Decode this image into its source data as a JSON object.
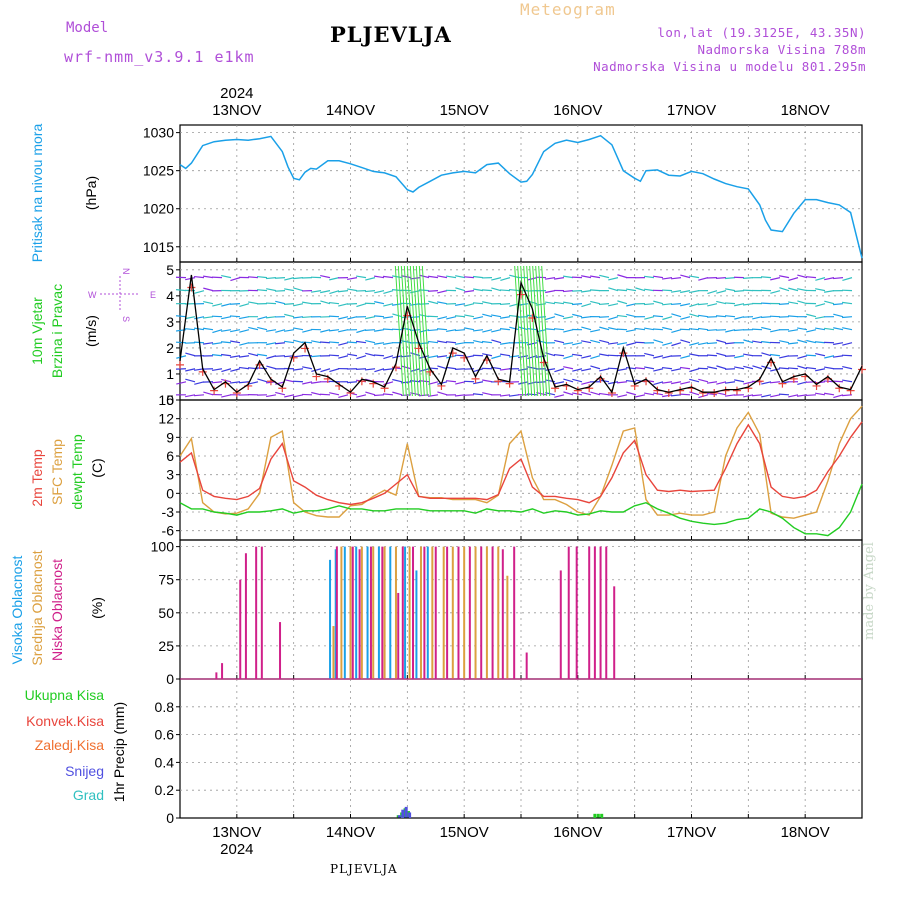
{
  "header": {
    "model_label": "Model",
    "model_name": "wrf-nmm_v3.9.1 e1km",
    "station": "PLJEVLJA",
    "meteogram": "Meteogram",
    "coords": "lon,lat (19.3125E, 43.35N)",
    "altitude": "Nadmorska Visina 788m",
    "model_altitude": "Nadmorska Visina u modelu 801.295m"
  },
  "footer": {
    "station": "PLJEVLJA",
    "credit": "made by Angel"
  },
  "colors": {
    "pressure": "#1aa0e8",
    "temp2m": "#e8453c",
    "sfc": "#dca040",
    "dewpt": "#22cc22",
    "high_cloud": "#1aa0e8",
    "mid_cloud": "#dca040",
    "low_cloud": "#d0208a",
    "total_precip": "#22cc22",
    "conv_precip": "#e8453c",
    "frozen_precip": "#f07030",
    "snow": "#5050e0",
    "hail": "#30c0c0",
    "axis_label": "#000",
    "grid": "#999999"
  },
  "axis": {
    "year": "2024",
    "days": [
      "13NOV",
      "14NOV",
      "15NOV",
      "16NOV",
      "17NOV",
      "18NOV"
    ]
  },
  "panel_labels": {
    "pressure": {
      "lines": [
        "Pritisak na nivou mora"
      ],
      "unit": "(hPa)"
    },
    "wind": {
      "lines": [
        "10m Vjetar",
        "Brzina i Pravac"
      ],
      "unit": "(m/s)",
      "compass": [
        "W",
        "E",
        "N",
        "S"
      ]
    },
    "temp": {
      "lines": [
        "2m Temp",
        "SFC Temp",
        "dewpt Temp"
      ],
      "unit": "(C)"
    },
    "cloud": {
      "lines": [
        "Visoka Oblacnost",
        "Srednja Oblacnost",
        "Niska Oblacnost"
      ],
      "unit": "(%)"
    },
    "precip": {
      "lines": [
        "Ukupna Kisa",
        "Konvek.Kisa",
        "Zaledj.Kisa",
        "Snijeg",
        "Grad"
      ],
      "unit": "1hr Precip (mm)"
    }
  },
  "chart_data": [
    {
      "type": "line",
      "name": "pressure",
      "ylim": [
        1013,
        1031
      ],
      "yticks": [
        1015,
        1020,
        1025,
        1030
      ],
      "x": [
        12.5,
        12.55,
        12.6,
        12.7,
        12.8,
        12.9,
        13.0,
        13.1,
        13.2,
        13.3,
        13.4,
        13.45,
        13.5,
        13.55,
        13.6,
        13.65,
        13.7,
        13.8,
        13.9,
        14.0,
        14.1,
        14.2,
        14.3,
        14.4,
        14.5,
        14.55,
        14.6,
        14.7,
        14.8,
        14.9,
        15.0,
        15.1,
        15.2,
        15.3,
        15.4,
        15.5,
        15.55,
        15.6,
        15.7,
        15.8,
        15.9,
        16.0,
        16.1,
        16.2,
        16.3,
        16.4,
        16.5,
        16.55,
        16.6,
        16.7,
        16.8,
        16.9,
        17.0,
        17.1,
        17.2,
        17.3,
        17.4,
        17.5,
        17.6,
        17.65,
        17.7,
        17.8,
        17.9,
        18.0,
        18.1,
        18.2,
        18.3,
        18.4,
        18.45,
        18.5
      ],
      "y": [
        1025.8,
        1025.3,
        1026.0,
        1028.3,
        1028.8,
        1029.0,
        1029.1,
        1029.0,
        1029.2,
        1029.5,
        1027.5,
        1025.5,
        1024.0,
        1023.8,
        1024.8,
        1025.3,
        1025.2,
        1026.3,
        1026.3,
        1025.9,
        1025.4,
        1024.9,
        1024.7,
        1024.2,
        1022.5,
        1022.2,
        1022.8,
        1023.6,
        1024.4,
        1024.7,
        1024.9,
        1024.7,
        1025.8,
        1026.0,
        1024.6,
        1023.5,
        1023.6,
        1024.5,
        1027.5,
        1028.6,
        1029.0,
        1028.7,
        1029.1,
        1029.6,
        1028.4,
        1025.0,
        1024.0,
        1023.6,
        1025.0,
        1025.1,
        1024.4,
        1024.3,
        1024.9,
        1024.6,
        1023.9,
        1023.3,
        1022.9,
        1022.6,
        1020.5,
        1018.5,
        1017.2,
        1017.0,
        1019.4,
        1021.2,
        1021.2,
        1020.8,
        1020.5,
        1019.5,
        1016.5,
        1013.5
      ],
      "series": [
        {
          "name": "Pritisak na nivou mora"
        }
      ]
    },
    {
      "type": "line",
      "name": "wind",
      "ylim": [
        0,
        5.3
      ],
      "yticks": [
        0,
        1,
        2,
        3,
        4,
        5
      ],
      "x": [
        12.5,
        12.6,
        12.7,
        12.8,
        12.9,
        13.0,
        13.1,
        13.2,
        13.3,
        13.4,
        13.5,
        13.6,
        13.7,
        13.8,
        13.9,
        14.0,
        14.1,
        14.2,
        14.3,
        14.4,
        14.5,
        14.6,
        14.7,
        14.8,
        14.9,
        15.0,
        15.1,
        15.2,
        15.3,
        15.4,
        15.5,
        15.6,
        15.7,
        15.8,
        15.9,
        16.0,
        16.1,
        16.2,
        16.3,
        16.4,
        16.5,
        16.6,
        16.7,
        16.8,
        16.9,
        17.0,
        17.1,
        17.2,
        17.3,
        17.4,
        17.5,
        17.6,
        17.7,
        17.8,
        17.9,
        18.0,
        18.1,
        18.2,
        18.3,
        18.4,
        18.5
      ],
      "y": [
        1.5,
        4.8,
        1.2,
        0.4,
        0.7,
        0.3,
        0.6,
        1.5,
        0.8,
        0.5,
        1.8,
        2.2,
        1.0,
        0.9,
        0.6,
        0.3,
        0.8,
        0.7,
        0.5,
        1.4,
        3.6,
        2.2,
        1.2,
        0.6,
        2.0,
        1.8,
        0.9,
        1.7,
        0.8,
        0.7,
        4.5,
        3.5,
        1.6,
        0.5,
        0.6,
        0.4,
        0.5,
        0.9,
        0.3,
        2.0,
        0.6,
        0.8,
        0.4,
        0.3,
        0.4,
        0.5,
        0.3,
        0.3,
        0.4,
        0.4,
        0.5,
        0.8,
        1.6,
        0.7,
        0.9,
        1.0,
        0.6,
        0.9,
        0.5,
        0.4,
        1.3
      ],
      "series": [
        {
          "name": "10m Vjetar"
        }
      ]
    },
    {
      "type": "line",
      "name": "temperature",
      "ylim": [
        -7.5,
        15
      ],
      "yticks": [
        -6,
        -3,
        0,
        3,
        6,
        9,
        12,
        15
      ],
      "x": [
        12.5,
        12.6,
        12.7,
        12.8,
        12.9,
        13.0,
        13.1,
        13.2,
        13.3,
        13.4,
        13.5,
        13.6,
        13.7,
        13.8,
        13.9,
        14.0,
        14.1,
        14.2,
        14.3,
        14.4,
        14.5,
        14.6,
        14.7,
        14.8,
        14.9,
        15.0,
        15.1,
        15.2,
        15.3,
        15.4,
        15.5,
        15.6,
        15.7,
        15.8,
        15.9,
        16.0,
        16.1,
        16.2,
        16.3,
        16.4,
        16.5,
        16.6,
        16.7,
        16.8,
        16.9,
        17.0,
        17.1,
        17.2,
        17.3,
        17.4,
        17.5,
        17.6,
        17.7,
        17.8,
        17.9,
        18.0,
        18.1,
        18.2,
        18.3,
        18.4,
        18.5
      ],
      "series": [
        {
          "name": "2m Temp",
          "values": [
            5.0,
            6.5,
            0.5,
            -0.5,
            -0.8,
            -1.0,
            -0.5,
            0.8,
            5.5,
            8.0,
            2.0,
            1.0,
            -0.3,
            -1.0,
            -1.5,
            -1.8,
            -1.5,
            -0.8,
            0.0,
            1.5,
            3.0,
            -0.5,
            -0.8,
            -0.8,
            -0.8,
            -0.8,
            -0.8,
            -1.0,
            -0.2,
            4.0,
            5.5,
            1.0,
            -0.5,
            -0.5,
            -0.8,
            -1.0,
            -1.5,
            -0.5,
            2.5,
            6.5,
            8.5,
            3.0,
            0.5,
            0.3,
            0.5,
            0.3,
            0.4,
            0.5,
            4.0,
            8.0,
            11.0,
            8.0,
            1.0,
            -0.5,
            -0.8,
            -0.5,
            0.5,
            3.5,
            6.0,
            9.0,
            11.5
          ]
        },
        {
          "name": "SFC Temp",
          "values": [
            6.0,
            8.8,
            -1.5,
            -3.0,
            -3.3,
            -3.2,
            -2.5,
            0.0,
            9.0,
            10.0,
            -1.5,
            -3.0,
            -3.6,
            -3.8,
            -3.8,
            -2.0,
            -1.8,
            -0.5,
            0.5,
            -0.3,
            8.0,
            -0.5,
            -0.7,
            -0.7,
            -1.0,
            -1.0,
            -1.0,
            -1.5,
            -0.3,
            8.0,
            10.0,
            2.5,
            -1.0,
            -1.0,
            -1.8,
            -3.0,
            -3.5,
            -0.5,
            4.5,
            10.0,
            10.5,
            -1.0,
            -3.5,
            -3.5,
            -3.2,
            -3.5,
            -3.5,
            -3.0,
            6.0,
            10.5,
            13.0,
            9.5,
            -3.2,
            -3.8,
            -4.0,
            -3.5,
            -3.0,
            2.0,
            8.0,
            12.0,
            14.0
          ]
        },
        {
          "name": "dewpt Temp",
          "values": [
            -1.5,
            -2.5,
            -2.5,
            -3.0,
            -3.2,
            -3.5,
            -3.0,
            -3.0,
            -2.8,
            -2.5,
            -3.2,
            -2.8,
            -2.8,
            -2.5,
            -2.0,
            -2.5,
            -2.5,
            -2.8,
            -2.8,
            -2.5,
            -2.5,
            -2.5,
            -2.8,
            -2.8,
            -2.8,
            -2.8,
            -3.2,
            -2.5,
            -2.8,
            -2.8,
            -3.0,
            -2.5,
            -3.2,
            -2.8,
            -3.0,
            -3.5,
            -3.3,
            -2.8,
            -3.0,
            -3.0,
            -2.0,
            -1.5,
            -2.5,
            -3.2,
            -4.0,
            -4.5,
            -4.8,
            -5.0,
            -4.8,
            -4.2,
            -4.0,
            -2.5,
            -3.0,
            -4.0,
            -5.5,
            -6.5,
            -6.5,
            -6.8,
            -5.5,
            -3.0,
            1.5
          ]
        }
      ]
    },
    {
      "type": "bar",
      "name": "cloud",
      "ylim": [
        0,
        105
      ],
      "yticks": [
        0,
        25,
        50,
        75,
        100
      ],
      "series": [
        {
          "name": "Visoka Oblacnost",
          "x": [
            13.82,
            13.87,
            13.95,
            14.05,
            14.15,
            14.25,
            14.35,
            14.48,
            14.58,
            14.68
          ],
          "values": [
            90,
            98,
            100,
            100,
            100,
            100,
            100,
            100,
            82,
            100
          ]
        },
        {
          "name": "Srednja Oblacnost",
          "x": [
            13.85,
            13.92,
            14.0,
            14.1,
            14.2,
            14.3,
            14.4,
            14.52,
            14.62,
            14.72,
            14.82,
            14.9,
            15.0,
            15.1,
            15.2,
            15.3,
            15.38
          ],
          "values": [
            40,
            100,
            100,
            100,
            100,
            100,
            100,
            100,
            100,
            100,
            100,
            100,
            100,
            100,
            100,
            100,
            78
          ]
        },
        {
          "name": "Niska Oblacnost",
          "x": [
            12.82,
            12.87,
            13.03,
            13.08,
            13.17,
            13.22,
            13.38,
            13.88,
            14.02,
            14.08,
            14.18,
            14.28,
            14.42,
            14.46,
            14.55,
            14.65,
            14.75,
            14.85,
            14.95,
            15.05,
            15.15,
            15.25,
            15.34,
            15.44,
            15.55,
            15.85,
            15.92,
            15.99,
            16.1,
            16.15,
            16.2,
            16.25,
            16.32
          ],
          "values": [
            5,
            12,
            75,
            95,
            100,
            100,
            43,
            100,
            100,
            98,
            100,
            100,
            65,
            100,
            100,
            100,
            100,
            100,
            100,
            100,
            100,
            100,
            98,
            100,
            20,
            82,
            100,
            100,
            100,
            100,
            100,
            100,
            70
          ]
        }
      ]
    },
    {
      "type": "bar",
      "name": "precip",
      "ylim": [
        0,
        1.0
      ],
      "yticks": [
        0,
        0.2,
        0.4,
        0.6,
        0.8
      ],
      "series": [
        {
          "name": "Ukupna Kisa",
          "x": [
            14.42,
            14.45,
            14.48,
            14.51,
            16.15,
            16.18,
            16.21
          ],
          "values": [
            0.02,
            0.04,
            0.07,
            0.05,
            0.03,
            0.03,
            0.03
          ]
        },
        {
          "name": "Snijeg",
          "x": [
            14.43,
            14.46,
            14.49,
            14.52
          ],
          "values": [
            0.02,
            0.06,
            0.08,
            0.04
          ]
        }
      ]
    }
  ]
}
